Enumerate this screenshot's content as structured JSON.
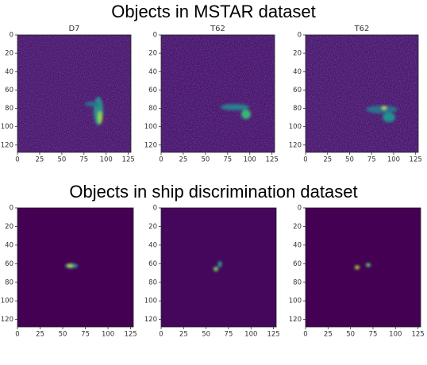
{
  "headings": [
    "Objects in MSTAR dataset",
    "Objects in ship discrimination dataset"
  ],
  "chart_data": [
    {
      "type": "image",
      "title": "D7",
      "xlim": [
        0,
        128
      ],
      "ylim": [
        128,
        0
      ],
      "xticks": [
        0,
        25,
        50,
        75,
        100,
        125
      ],
      "yticks": [
        0,
        20,
        40,
        60,
        80,
        100,
        120
      ]
    },
    {
      "type": "image",
      "title": "T62",
      "xlim": [
        0,
        128
      ],
      "ylim": [
        128,
        0
      ],
      "xticks": [
        0,
        25,
        50,
        75,
        100,
        125
      ],
      "yticks": [
        0,
        20,
        40,
        60,
        80,
        100,
        120
      ]
    },
    {
      "type": "image",
      "title": "T62",
      "xlim": [
        0,
        128
      ],
      "ylim": [
        128,
        0
      ],
      "xticks": [
        0,
        25,
        50,
        75,
        100,
        125
      ],
      "yticks": [
        0,
        20,
        40,
        60,
        80,
        100,
        120
      ]
    },
    {
      "type": "image",
      "xlim": [
        0,
        128
      ],
      "ylim": [
        128,
        0
      ],
      "xticks": [
        0,
        25,
        50,
        75,
        100,
        125
      ],
      "yticks": [
        0,
        20,
        40,
        60,
        80,
        100,
        120
      ]
    },
    {
      "type": "image",
      "xlim": [
        0,
        128
      ],
      "ylim": [
        128,
        0
      ],
      "xticks": [
        0,
        25,
        50,
        75,
        100,
        125
      ],
      "yticks": [
        0,
        20,
        40,
        60,
        80,
        100,
        120
      ]
    },
    {
      "type": "image",
      "xlim": [
        0,
        128
      ],
      "ylim": [
        128,
        0
      ],
      "xticks": [
        0,
        25,
        50,
        75,
        100,
        125
      ],
      "yticks": [
        0,
        20,
        40,
        60,
        80,
        100,
        120
      ]
    }
  ]
}
